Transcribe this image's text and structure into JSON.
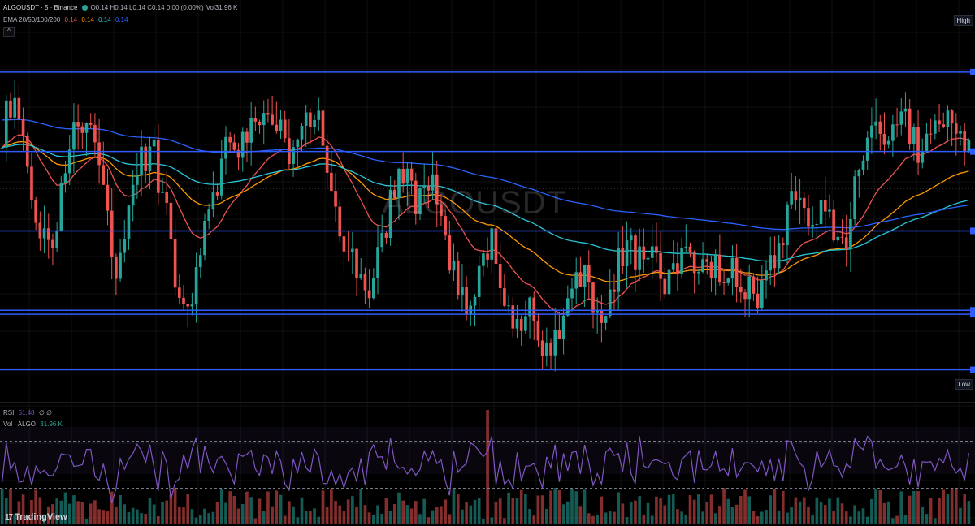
{
  "legend": {
    "symbol": "ALGOUSDT · 5 · Binance",
    "ohlc": "O0.14 H0.14 L0.14 C0.14 0.00 (0.00%)",
    "vol": "Vol31.96 K"
  },
  "ema_legend": {
    "label": "EMA 20/50/100/200",
    "v20": "0.14",
    "v50": "0.14",
    "v100": "0.14",
    "v200": "0.14"
  },
  "rsi_legend": {
    "label": "RSI",
    "value": "51.48",
    "extra": "∅ ∅"
  },
  "vol_legend": {
    "label": "Vol · ALGO",
    "value": "31.96 K"
  },
  "watermark": "ALGOUSDT",
  "badges": {
    "high": "High",
    "low": "Low"
  },
  "brand": "TradingView",
  "colors": {
    "up": "#26a69a",
    "down": "#ef5350",
    "ema20": "#ef5350",
    "ema50": "#ff9800",
    "ema100": "#26c6da",
    "ema200": "#2962ff",
    "rsi": "#7e57c2",
    "level": "#2f5bff"
  },
  "icons": {
    "collapse": "chevron-up-icon",
    "brand": "tradingview-logo-icon"
  },
  "chart_data": {
    "type": "line",
    "price_levels": [
      0.146,
      0.144,
      0.142,
      0.14,
      0.1399,
      0.1385
    ],
    "ylim": [
      0.138,
      0.147
    ],
    "rsi_range": [
      0,
      100
    ],
    "rsi_guides": [
      70,
      30
    ],
    "close_path": [
      0.1446,
      0.1452,
      0.1435,
      0.142,
      0.1415,
      0.1438,
      0.1445,
      0.145,
      0.143,
      0.1412,
      0.142,
      0.1436,
      0.1442,
      0.1425,
      0.1405,
      0.1398,
      0.1418,
      0.1432,
      0.1445,
      0.144,
      0.1447,
      0.1452,
      0.1448,
      0.144,
      0.1444,
      0.145,
      0.1438,
      0.142,
      0.141,
      0.1402,
      0.1413,
      0.143,
      0.1433,
      0.1428,
      0.1435,
      0.1426,
      0.1408,
      0.1398,
      0.141,
      0.1416,
      0.1405,
      0.1396,
      0.14,
      0.139,
      0.1393,
      0.1404,
      0.141,
      0.1402,
      0.1396,
      0.1414,
      0.1418,
      0.1411,
      0.1412,
      0.1407,
      0.1412,
      0.141,
      0.1408,
      0.141,
      0.1412,
      0.1406,
      0.1404,
      0.141,
      0.1418,
      0.143,
      0.1422,
      0.1426,
      0.1422,
      0.1415,
      0.143,
      0.1445,
      0.1442,
      0.145,
      0.1446,
      0.144,
      0.1444,
      0.145,
      0.1445,
      0.1441
    ]
  }
}
